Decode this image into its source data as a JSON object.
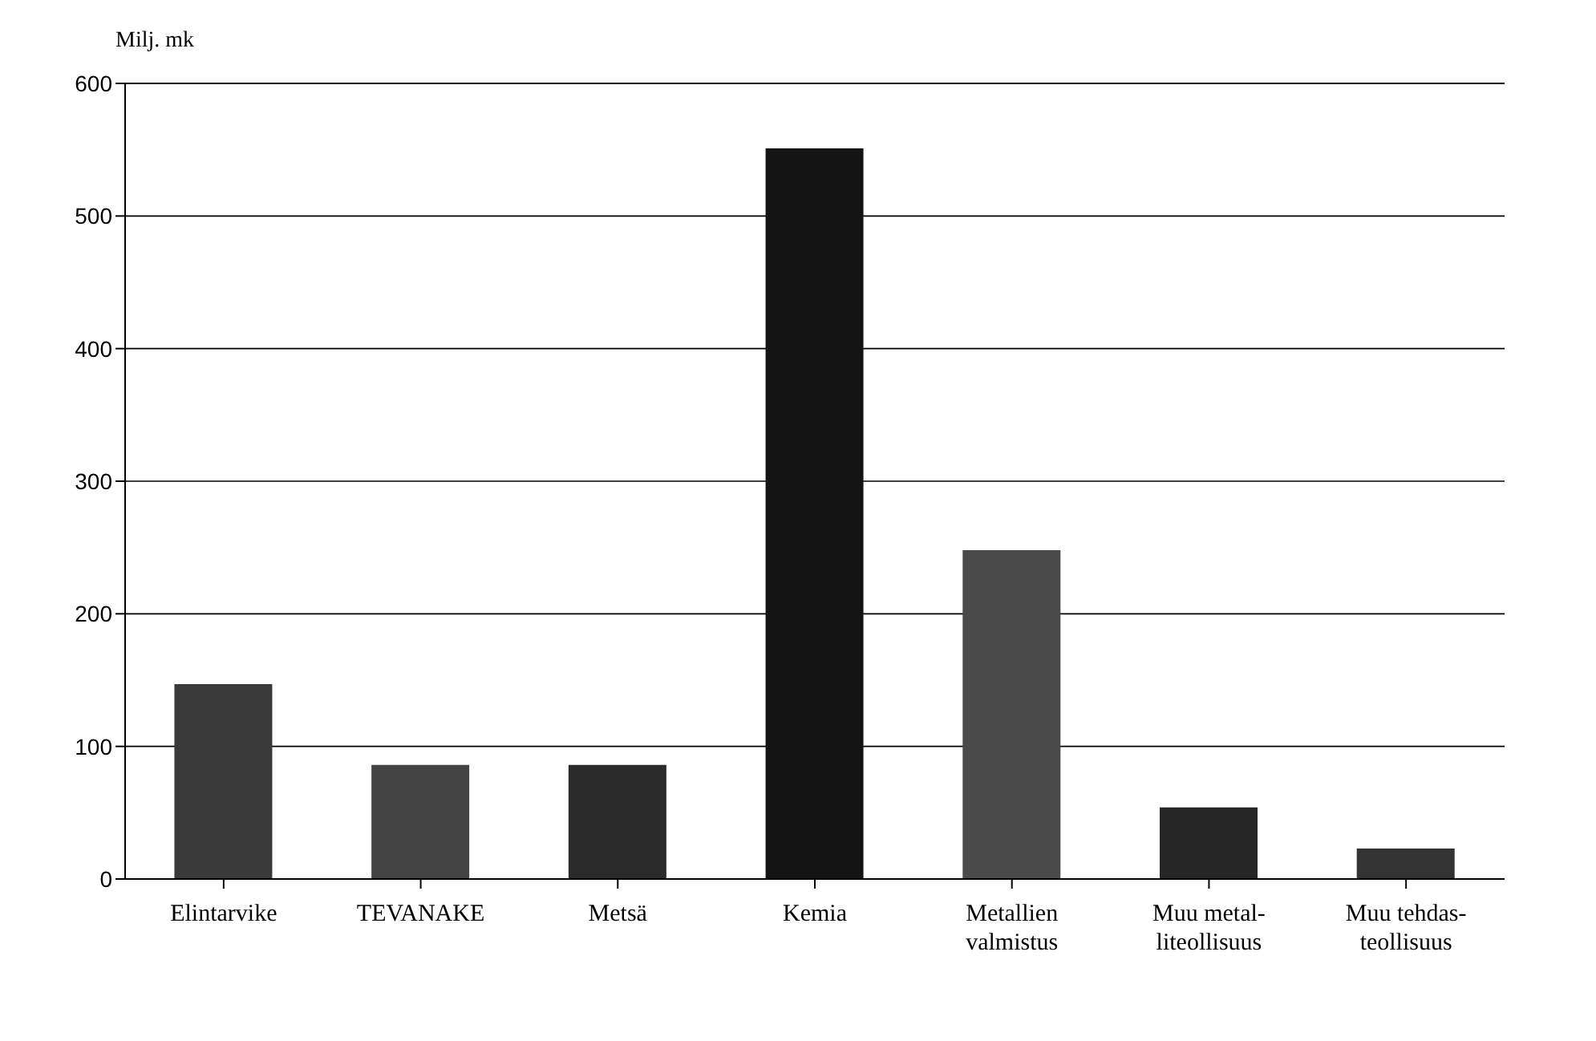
{
  "chart_data": {
    "type": "bar",
    "ylabel": "Milj. mk",
    "categories": [
      "Elintarvike",
      "TEVANAKE",
      "Metsä",
      "Kemia",
      "Metallien\nvalmistus",
      "Muu metal-\nliteollisuus",
      "Muu tehdas-\nteollisuus"
    ],
    "values": [
      147,
      86,
      86,
      551,
      248,
      54,
      23
    ],
    "colors": [
      "#3a3a3a",
      "#444444",
      "#2a2a2a",
      "#141414",
      "#4a4a4a",
      "#262626",
      "#333333"
    ],
    "ylim": [
      0,
      600
    ],
    "yticks": [
      0,
      100,
      200,
      300,
      400,
      500,
      600
    ],
    "grid": "y"
  }
}
